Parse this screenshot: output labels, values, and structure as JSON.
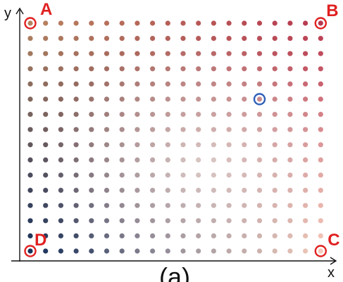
{
  "figure": {
    "caption": "(a)",
    "axes": {
      "x_label": "x",
      "y_label": "y"
    },
    "grid": {
      "columns": 20,
      "rows": 16
    },
    "colors": {
      "top_left": "#b6835f",
      "top_right": "#b8384f",
      "bottom_left": "#16305a",
      "bottom_right": "#f4c9b8",
      "center": "#ece4df",
      "highlight_ring": "#e02020",
      "selected_ring": "#2f5fb8",
      "axis": "#111111"
    },
    "corner_markers": [
      {
        "label": "A",
        "col": 0,
        "row": 0
      },
      {
        "label": "B",
        "col": 19,
        "row": 0
      },
      {
        "label": "C",
        "col": 19,
        "row": 15
      },
      {
        "label": "D",
        "col": 0,
        "row": 15
      }
    ],
    "selected_point": {
      "col": 15,
      "row": 5
    }
  }
}
